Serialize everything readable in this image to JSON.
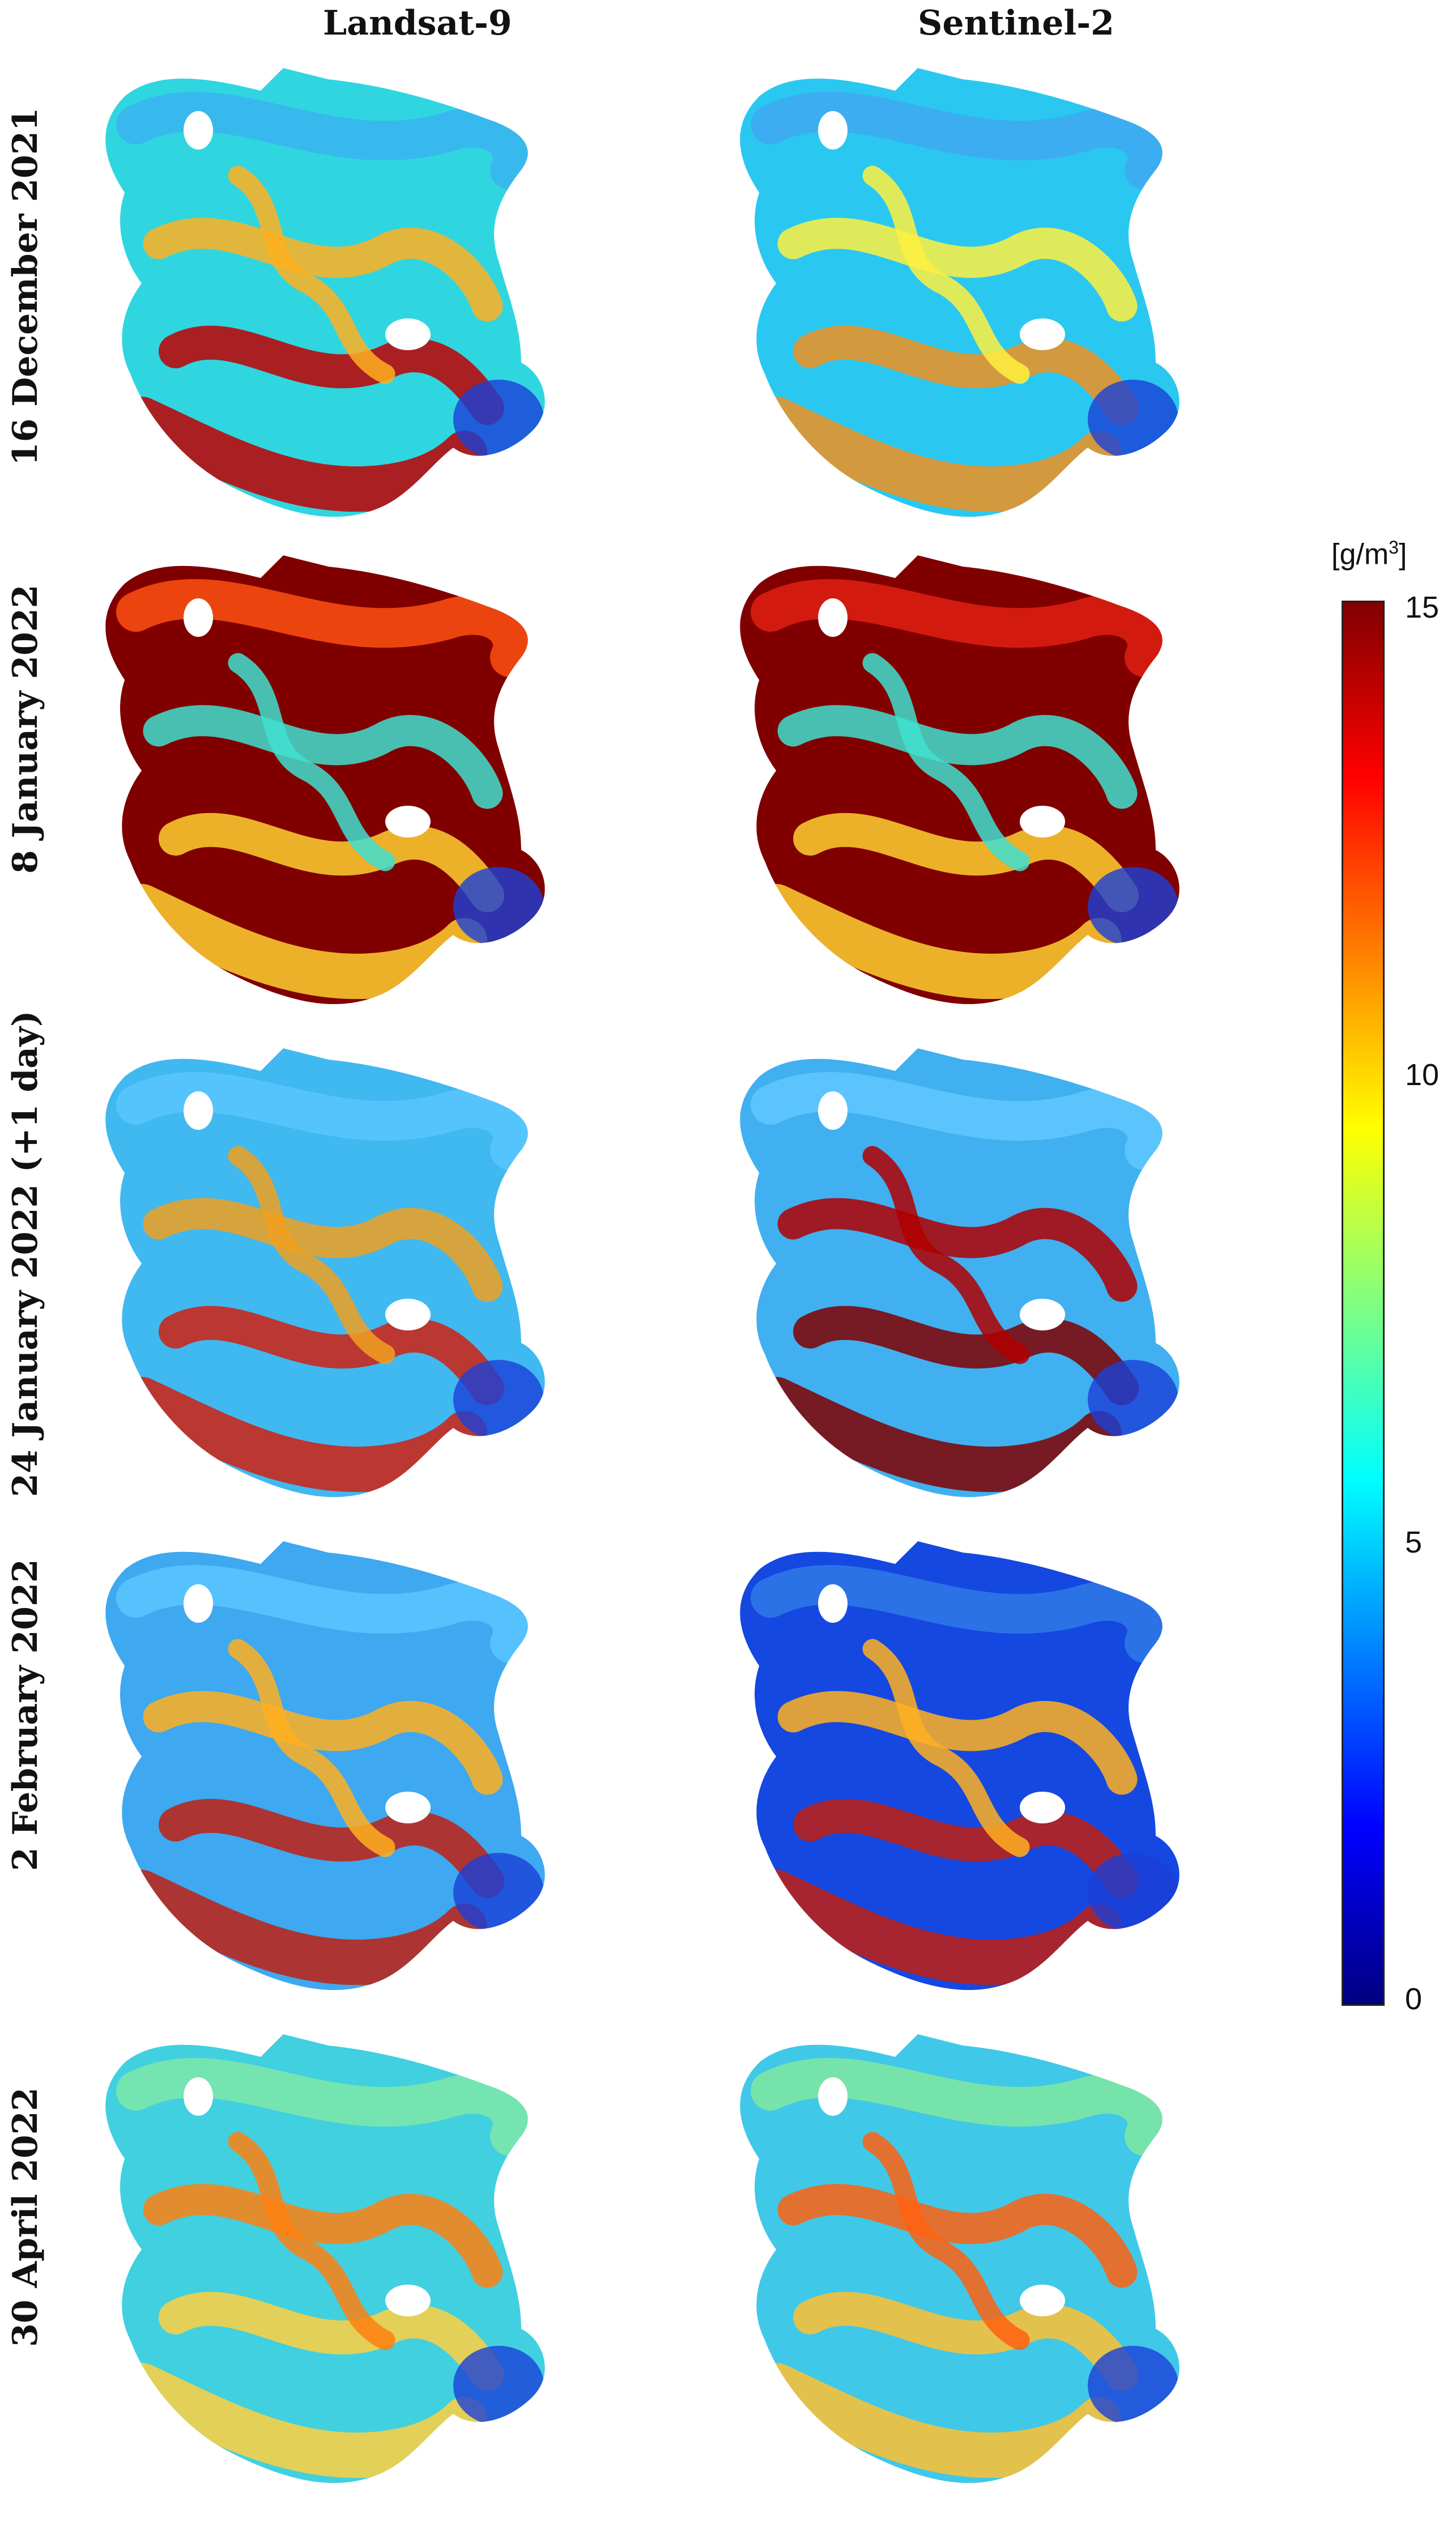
{
  "columns": [
    "Landsat-9",
    "Sentinel-2"
  ],
  "rows": [
    "16 December 2021",
    "8 January 2022",
    "24 January 2022 (+1 day)",
    "2 February 2022",
    "30 April 2022"
  ],
  "colorbar": {
    "unit": "[g/m",
    "unit_sup": "3",
    "unit_close": "]",
    "ticks": [
      "15",
      "10",
      "5",
      "0"
    ],
    "colormap": "jet",
    "range": [
      0,
      15
    ]
  },
  "panel_palettes": [
    [
      "#2fd6e0",
      "#39b4f0",
      "#c00000",
      "#ffb020"
    ],
    [
      "#2ac8f0",
      "#40a8f0",
      "#f09020",
      "#fff040"
    ],
    [
      "#800000",
      "#ff5010",
      "#ffd030",
      "#40e0d0"
    ],
    [
      "#800000",
      "#e02010",
      "#ffd030",
      "#40e0d0"
    ],
    [
      "#40b8f0",
      "#59c6ff",
      "#d02010",
      "#f0a020"
    ],
    [
      "#40b0f0",
      "#60c8ff",
      "#800000",
      "#b00000"
    ],
    [
      "#3ea8f0",
      "#59c6ff",
      "#c02010",
      "#ffb020"
    ],
    [
      "#1448e0",
      "#2f7ae8",
      "#c02010",
      "#ffb020"
    ],
    [
      "#40d0e0",
      "#7ee8a8",
      "#ffd040",
      "#ff8010"
    ],
    [
      "#40c8e8",
      "#80e8a0",
      "#ffc030",
      "#ff6010"
    ]
  ]
}
